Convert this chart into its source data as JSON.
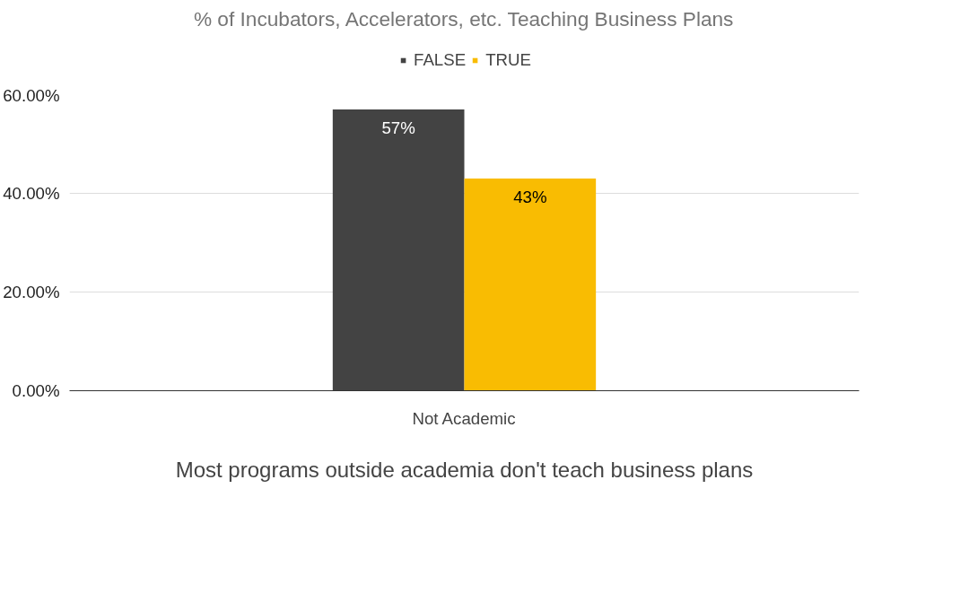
{
  "chart_data": {
    "type": "bar",
    "title": "% of Incubators, Accelerators, etc. Teaching Business Plans",
    "xlabel": "Most programs outside academia don't teach business plans",
    "categories": [
      "Not Academic"
    ],
    "series": [
      {
        "name": "FALSE",
        "color": "#434343",
        "values": [
          57
        ],
        "value_labels": [
          "57%"
        ]
      },
      {
        "name": "TRUE",
        "color": "#f9bc02",
        "values": [
          43
        ],
        "value_labels": [
          "43%"
        ]
      }
    ],
    "ylim": [
      0,
      60
    ],
    "yticks": [
      {
        "value": 0,
        "label": "0.00%"
      },
      {
        "value": 20,
        "label": "20.00%"
      },
      {
        "value": 40,
        "label": "40.00%"
      },
      {
        "value": 60,
        "label": "60.00%"
      }
    ],
    "grid": "y",
    "legend": "top"
  }
}
